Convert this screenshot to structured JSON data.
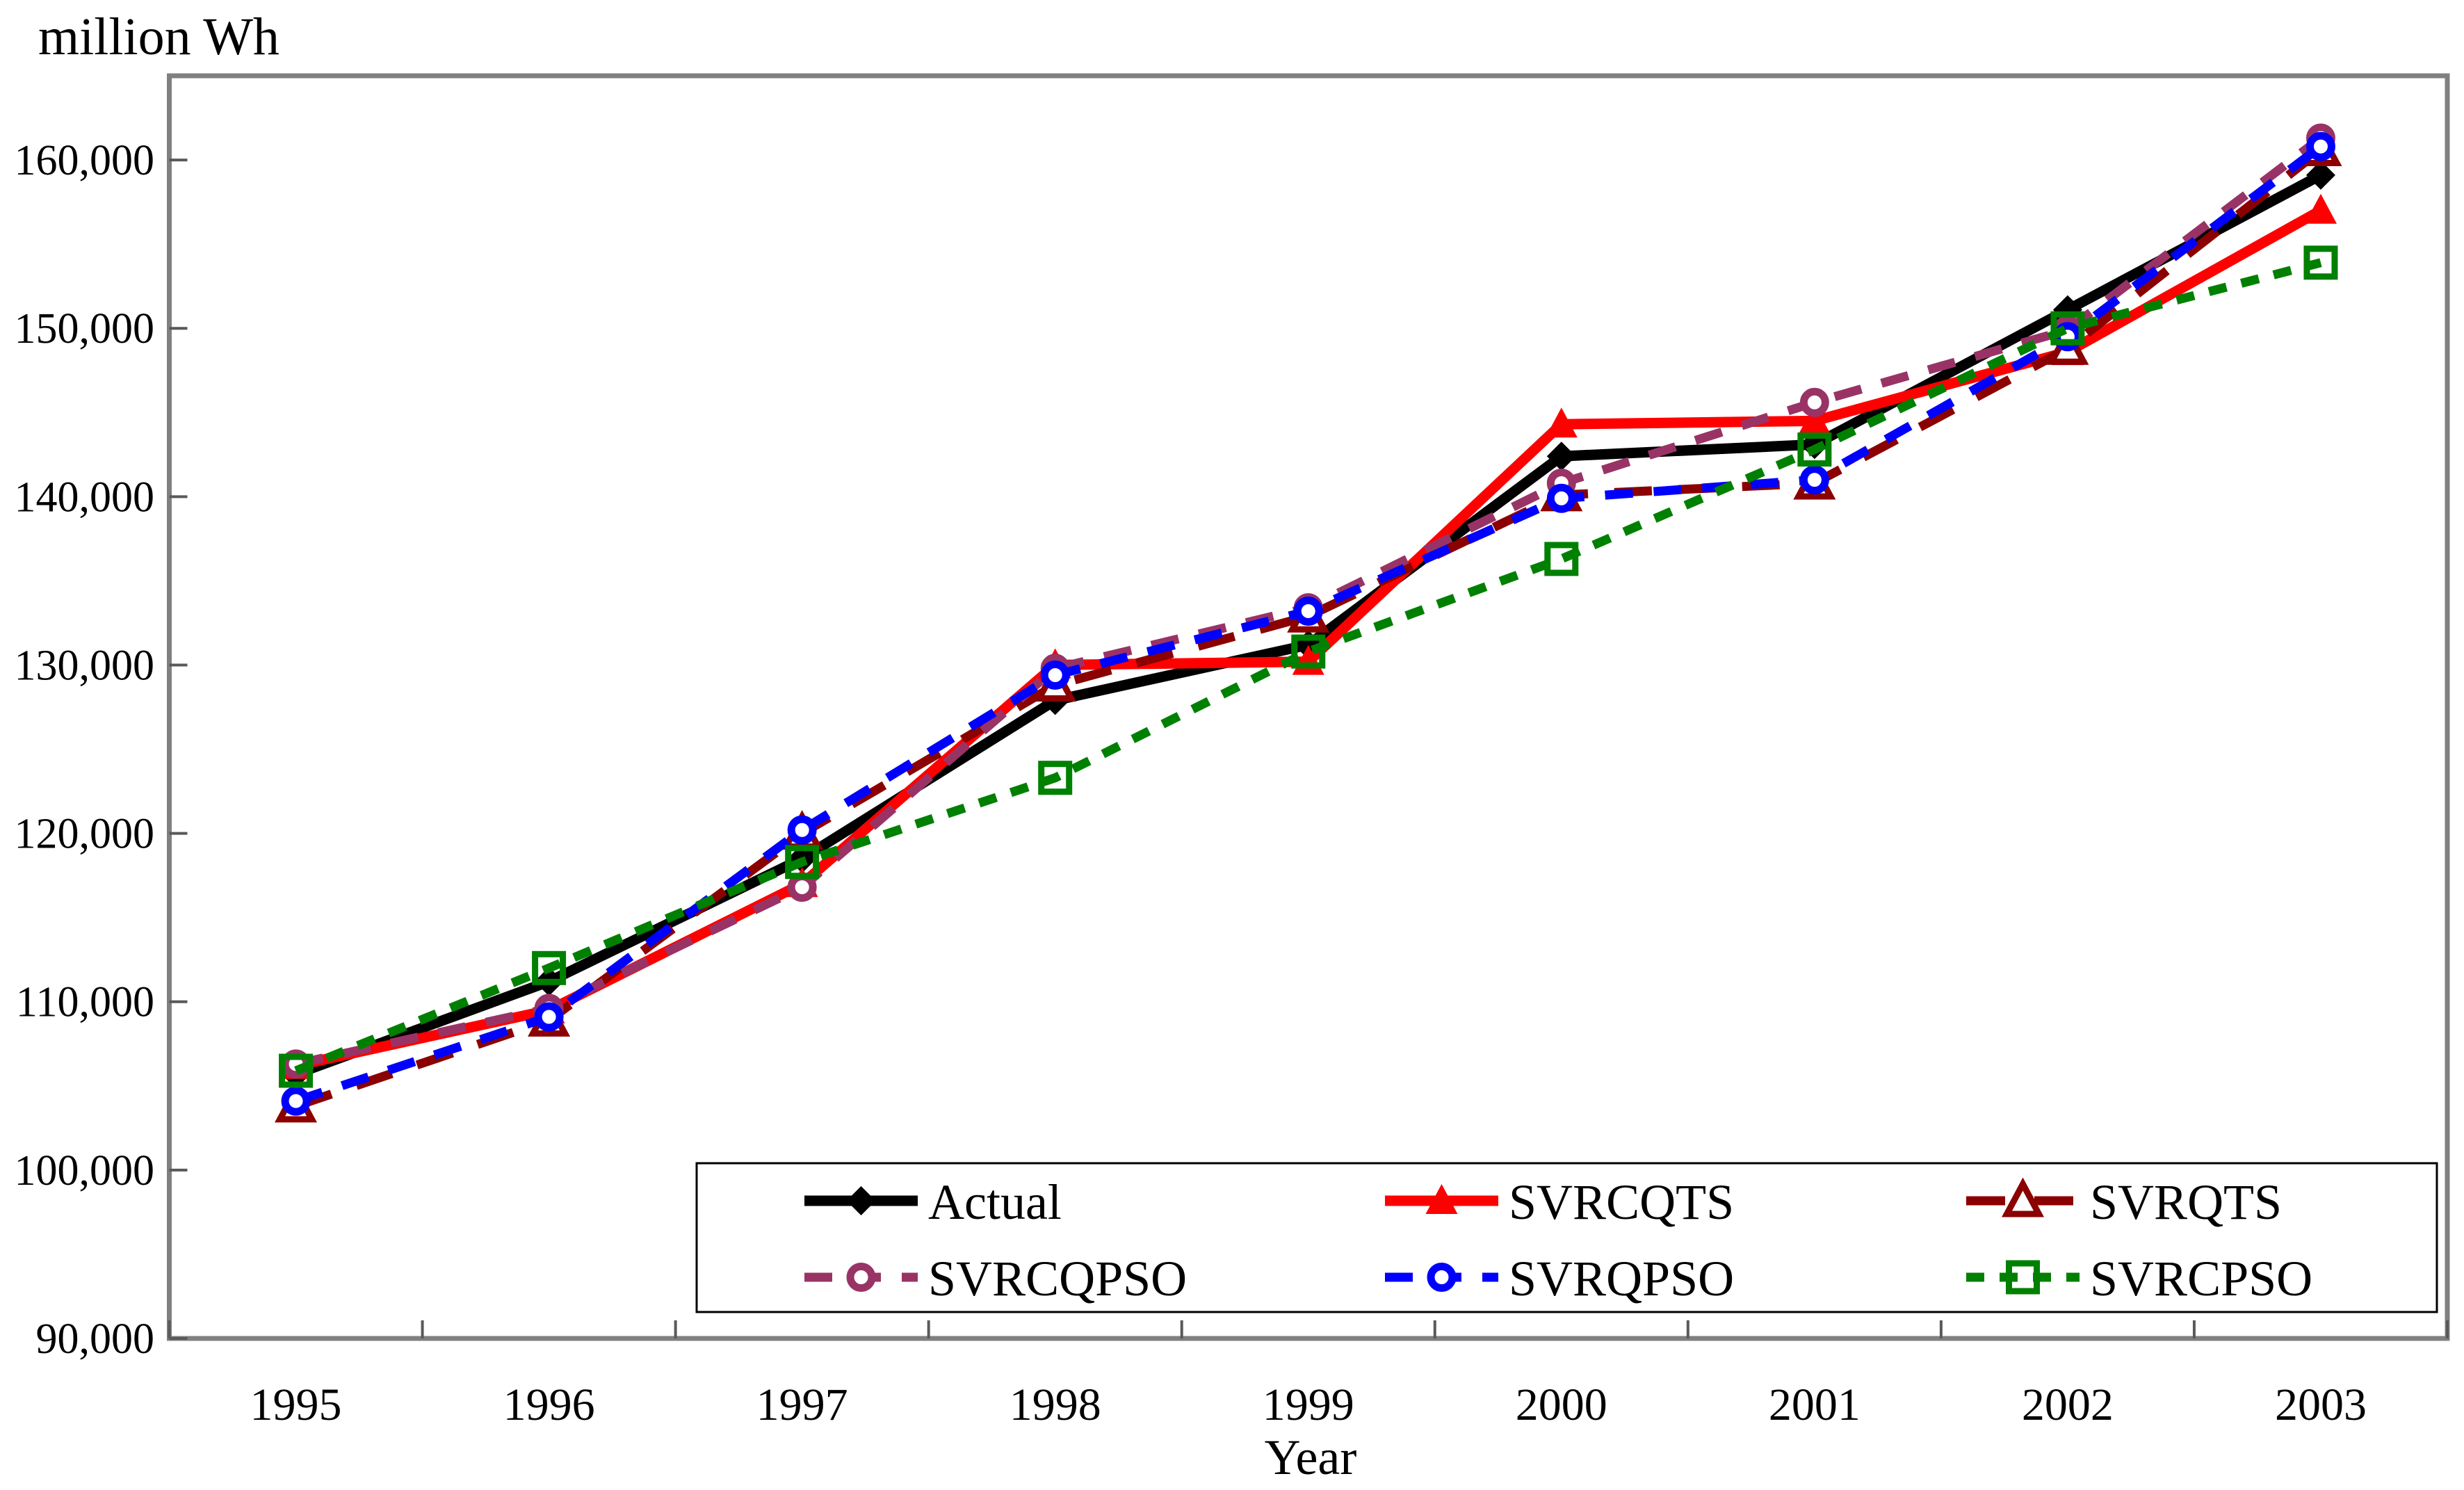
{
  "page": {
    "background": "#FFFFFF",
    "axis_color": "#808080",
    "tick_color": "#595959",
    "text_color": "#000000"
  },
  "chart_data": {
    "type": "line",
    "title": "",
    "ylabel": "million Wh",
    "xlabel": "Year",
    "categories": [
      "1995",
      "1996",
      "1997",
      "1998",
      "1999",
      "2000",
      "2001",
      "2002",
      "2003"
    ],
    "y_tick_values": [
      90000,
      100000,
      110000,
      120000,
      130000,
      140000,
      150000,
      160000
    ],
    "y_tick_labels": [
      "90,000",
      "100,000",
      "110,000",
      "120,000",
      "130,000",
      "140,000",
      "150,000",
      "160,000"
    ],
    "ylim": [
      90000,
      165000
    ],
    "grid": false,
    "legend_position": "bottom-inside-box",
    "series": [
      {
        "name": "Actual",
        "color": "#000000",
        "line_style": "solid",
        "marker": "diamond-filled",
        "values": [
          105700,
          111200,
          118500,
          127900,
          131200,
          142400,
          143100,
          151100,
          159100
        ]
      },
      {
        "name": "SVRCQTS",
        "color": "#FF0000",
        "line_style": "solid",
        "marker": "triangle-filled",
        "values": [
          106200,
          109500,
          117000,
          130000,
          130200,
          144300,
          144500,
          148600,
          157000
        ]
      },
      {
        "name": "SVRQTS",
        "color": "#8B0000",
        "line_style": "long-dash",
        "marker": "triangle-open",
        "values": [
          103800,
          108900,
          120000,
          128800,
          132900,
          140100,
          140800,
          148800,
          160600
        ]
      },
      {
        "name": "SVRCQPSO",
        "color": "#993366",
        "line_style": "dash",
        "marker": "circle-open",
        "values": [
          106300,
          109600,
          116800,
          129800,
          133400,
          140800,
          145600,
          149900,
          161300
        ]
      },
      {
        "name": "SVRQPSO",
        "color": "#0000FF",
        "line_style": "dash",
        "marker": "circle-open",
        "values": [
          104100,
          109100,
          120200,
          129400,
          133200,
          139900,
          141000,
          149500,
          160800
        ]
      },
      {
        "name": "SVRCPSO",
        "color": "#008000",
        "line_style": "dot",
        "marker": "square-open",
        "values": [
          105900,
          112000,
          118300,
          123300,
          130800,
          136300,
          142800,
          150000,
          153900
        ]
      }
    ]
  }
}
